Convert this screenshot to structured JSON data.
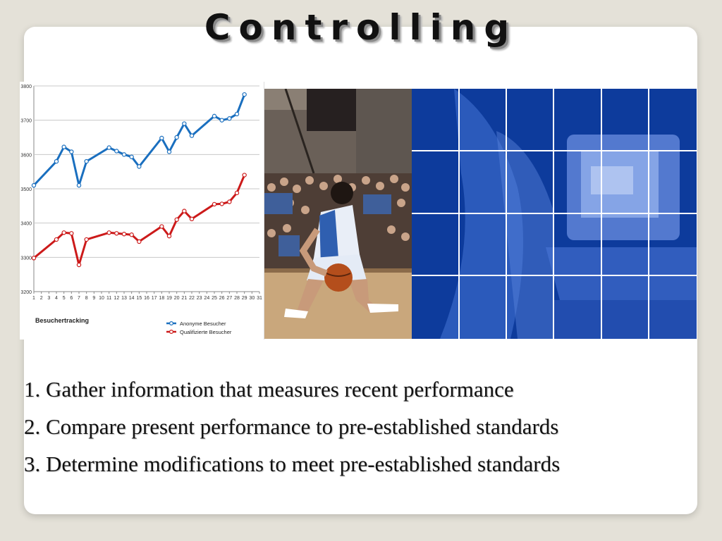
{
  "slide": {
    "title": "Controlling",
    "steps": [
      "1. Gather information that measures recent performance",
      "2. Compare present performance to pre-established standards",
      "3. Determine modifications to meet pre-established standards"
    ]
  },
  "colors": {
    "background": "#e4e1d8",
    "card": "#ffffff",
    "series_anonyme": "#1a6fbf",
    "series_qualifiziert": "#cc1a1a",
    "tech_blue": "#0c3a99"
  },
  "chart_data": {
    "type": "line",
    "title": "Besuchertracking",
    "xlabel": "",
    "ylabel": "",
    "x": [
      1,
      2,
      3,
      4,
      5,
      6,
      7,
      8,
      9,
      10,
      11,
      12,
      13,
      14,
      15,
      16,
      17,
      18,
      19,
      20,
      21,
      22,
      23,
      24,
      25,
      26,
      27,
      28,
      29,
      30,
      31
    ],
    "xlim": [
      1,
      31
    ],
    "ylim": [
      3200,
      3800
    ],
    "yticks": [
      3200,
      3300,
      3400,
      3500,
      3600,
      3700,
      3800
    ],
    "grid": true,
    "legend": "bottom-right",
    "series": [
      {
        "name": "Anonyme Besucher",
        "color": "#1a6fbf",
        "points": [
          [
            1,
            3510
          ],
          [
            4,
            3580
          ],
          [
            5,
            3622
          ],
          [
            6,
            3608
          ],
          [
            7,
            3510
          ],
          [
            8,
            3580
          ],
          [
            11,
            3620
          ],
          [
            12,
            3610
          ],
          [
            13,
            3600
          ],
          [
            14,
            3593
          ],
          [
            15,
            3565
          ],
          [
            18,
            3648
          ],
          [
            19,
            3608
          ],
          [
            20,
            3650
          ],
          [
            21,
            3690
          ],
          [
            22,
            3655
          ],
          [
            25,
            3712
          ],
          [
            26,
            3700
          ],
          [
            27,
            3705
          ],
          [
            28,
            3718
          ],
          [
            29,
            3775
          ]
        ]
      },
      {
        "name": "Qualifizierte Besucher",
        "color": "#cc1a1a",
        "points": [
          [
            1,
            3298
          ],
          [
            4,
            3352
          ],
          [
            5,
            3372
          ],
          [
            6,
            3370
          ],
          [
            7,
            3278
          ],
          [
            8,
            3352
          ],
          [
            11,
            3372
          ],
          [
            12,
            3370
          ],
          [
            13,
            3368
          ],
          [
            14,
            3366
          ],
          [
            15,
            3346
          ],
          [
            18,
            3390
          ],
          [
            19,
            3362
          ],
          [
            20,
            3410
          ],
          [
            21,
            3435
          ],
          [
            22,
            3412
          ],
          [
            25,
            3455
          ],
          [
            26,
            3456
          ],
          [
            27,
            3462
          ],
          [
            28,
            3488
          ],
          [
            29,
            3540
          ]
        ]
      }
    ]
  }
}
